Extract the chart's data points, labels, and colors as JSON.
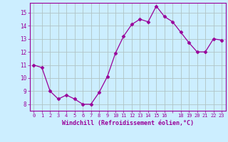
{
  "x": [
    0,
    1,
    2,
    3,
    4,
    5,
    6,
    7,
    8,
    9,
    10,
    11,
    12,
    13,
    14,
    15,
    16,
    17,
    18,
    19,
    20,
    21,
    22,
    23
  ],
  "y": [
    11.0,
    10.8,
    9.0,
    8.4,
    8.7,
    8.4,
    8.0,
    8.0,
    8.9,
    10.1,
    11.9,
    13.2,
    14.1,
    14.5,
    14.3,
    15.5,
    14.7,
    14.3,
    13.5,
    12.7,
    12.0,
    12.0,
    13.0,
    12.9
  ],
  "line_color": "#990099",
  "marker": "D",
  "marker_size": 2.5,
  "bg_color": "#cceeff",
  "grid_color": "#b0c4c4",
  "xlabel": "Windchill (Refroidissement éolien,°C)",
  "xlabel_color": "#990099",
  "tick_color": "#990099",
  "ylim": [
    7.5,
    15.75
  ],
  "yticks": [
    8,
    9,
    10,
    11,
    12,
    13,
    14,
    15
  ],
  "xlim": [
    -0.5,
    23.5
  ],
  "xtick_labels": [
    "0",
    "1",
    "2",
    "3",
    "4",
    "5",
    "6",
    "7",
    "8",
    "9",
    "10",
    "11",
    "12",
    "13",
    "14",
    "15",
    "16",
    "",
    "18",
    "19",
    "20",
    "21",
    "22",
    "23"
  ],
  "xtick_positions": [
    0,
    1,
    2,
    3,
    4,
    5,
    6,
    7,
    8,
    9,
    10,
    11,
    12,
    13,
    14,
    15,
    16,
    17,
    18,
    19,
    20,
    21,
    22,
    23
  ]
}
